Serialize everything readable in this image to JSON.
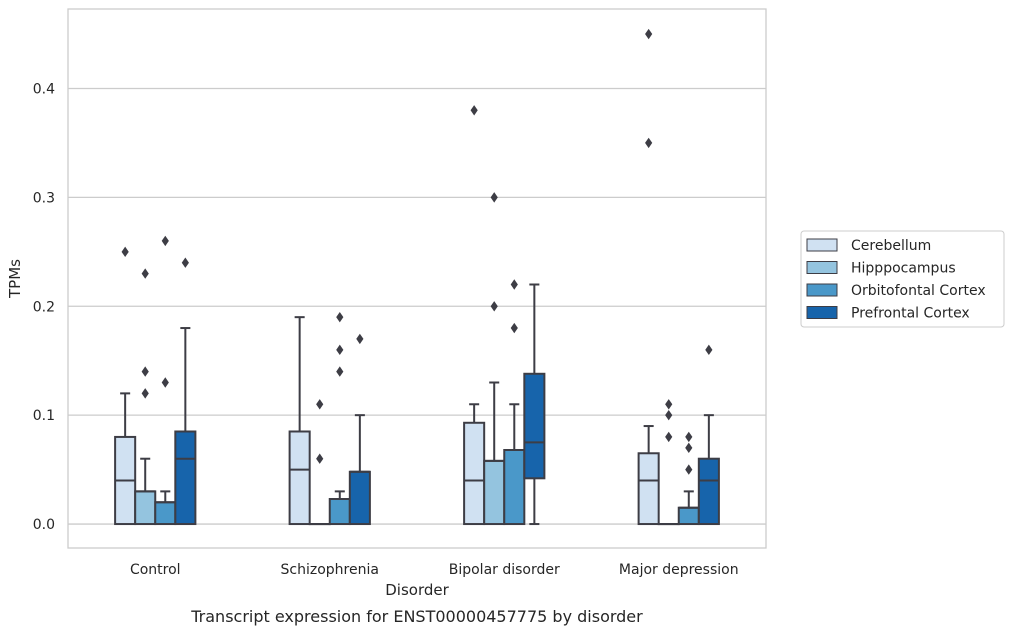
{
  "caption": "Transcript expression for ENST00000457775 by disorder",
  "chart_data": {
    "type": "box",
    "xlabel": "Disorder",
    "ylabel": "TPMs",
    "ylim": [
      -0.022,
      0.473
    ],
    "yticks": [
      0.0,
      0.1,
      0.2,
      0.3,
      0.4
    ],
    "ytick_labels": [
      "0.0",
      "0.1",
      "0.2",
      "0.3",
      "0.4"
    ],
    "grid": "horizontal",
    "legend_position": "right",
    "categories": [
      "Control",
      "Schizophrenia",
      "Bipolar disorder",
      "Major depression"
    ],
    "series": [
      {
        "name": "Cerebellum",
        "color": "#d0e1f2",
        "boxes": [
          {
            "category": "Control",
            "min": 0.0,
            "q1": 0.0,
            "median": 0.04,
            "q3": 0.08,
            "max": 0.12,
            "outliers": [
              0.25
            ]
          },
          {
            "category": "Schizophrenia",
            "min": 0.0,
            "q1": 0.0,
            "median": 0.05,
            "q3": 0.085,
            "max": 0.19,
            "outliers": []
          },
          {
            "category": "Bipolar disorder",
            "min": 0.0,
            "q1": 0.0,
            "median": 0.04,
            "q3": 0.093,
            "max": 0.11,
            "outliers": [
              0.38
            ]
          },
          {
            "category": "Major depression",
            "min": 0.0,
            "q1": 0.0,
            "median": 0.04,
            "q3": 0.065,
            "max": 0.09,
            "outliers": [
              0.35,
              0.45
            ]
          }
        ]
      },
      {
        "name": "Hipppocampus",
        "color": "#94c4df",
        "boxes": [
          {
            "category": "Control",
            "min": 0.0,
            "q1": 0.0,
            "median": 0.03,
            "q3": 0.03,
            "max": 0.06,
            "outliers": [
              0.12,
              0.14,
              0.23
            ]
          },
          {
            "category": "Schizophrenia",
            "min": 0.0,
            "q1": 0.0,
            "median": 0.0,
            "q3": 0.0,
            "max": 0.0,
            "outliers": [
              0.06,
              0.11
            ]
          },
          {
            "category": "Bipolar disorder",
            "min": 0.0,
            "q1": 0.0,
            "median": 0.058,
            "q3": 0.058,
            "max": 0.13,
            "outliers": [
              0.2,
              0.3
            ]
          },
          {
            "category": "Major depression",
            "min": 0.0,
            "q1": 0.0,
            "median": 0.0,
            "q3": 0.0,
            "max": 0.0,
            "outliers": [
              0.08,
              0.1,
              0.11
            ]
          }
        ]
      },
      {
        "name": "Orbitofontal Cortex",
        "color": "#4a98c9",
        "boxes": [
          {
            "category": "Control",
            "min": 0.0,
            "q1": 0.0,
            "median": 0.02,
            "q3": 0.02,
            "max": 0.03,
            "outliers": [
              0.13,
              0.26
            ]
          },
          {
            "category": "Schizophrenia",
            "min": 0.0,
            "q1": 0.0,
            "median": 0.023,
            "q3": 0.023,
            "max": 0.03,
            "outliers": [
              0.14,
              0.16,
              0.19
            ]
          },
          {
            "category": "Bipolar disorder",
            "min": 0.0,
            "q1": 0.0,
            "median": 0.068,
            "q3": 0.068,
            "max": 0.11,
            "outliers": [
              0.18,
              0.22
            ]
          },
          {
            "category": "Major depression",
            "min": 0.0,
            "q1": 0.0,
            "median": 0.015,
            "q3": 0.015,
            "max": 0.03,
            "outliers": [
              0.05,
              0.07,
              0.08
            ]
          }
        ]
      },
      {
        "name": "Prefrontal Cortex",
        "color": "#1764ab",
        "boxes": [
          {
            "category": "Control",
            "min": 0.0,
            "q1": 0.0,
            "median": 0.06,
            "q3": 0.085,
            "max": 0.18,
            "outliers": [
              0.24
            ]
          },
          {
            "category": "Schizophrenia",
            "min": 0.0,
            "q1": 0.0,
            "median": 0.048,
            "q3": 0.048,
            "max": 0.1,
            "outliers": [
              0.17
            ]
          },
          {
            "category": "Bipolar disorder",
            "min": 0.0,
            "q1": 0.042,
            "median": 0.075,
            "q3": 0.138,
            "max": 0.22,
            "outliers": []
          },
          {
            "category": "Major depression",
            "min": 0.0,
            "q1": 0.0,
            "median": 0.04,
            "q3": 0.06,
            "max": 0.1,
            "outliers": [
              0.16
            ]
          }
        ]
      }
    ]
  }
}
